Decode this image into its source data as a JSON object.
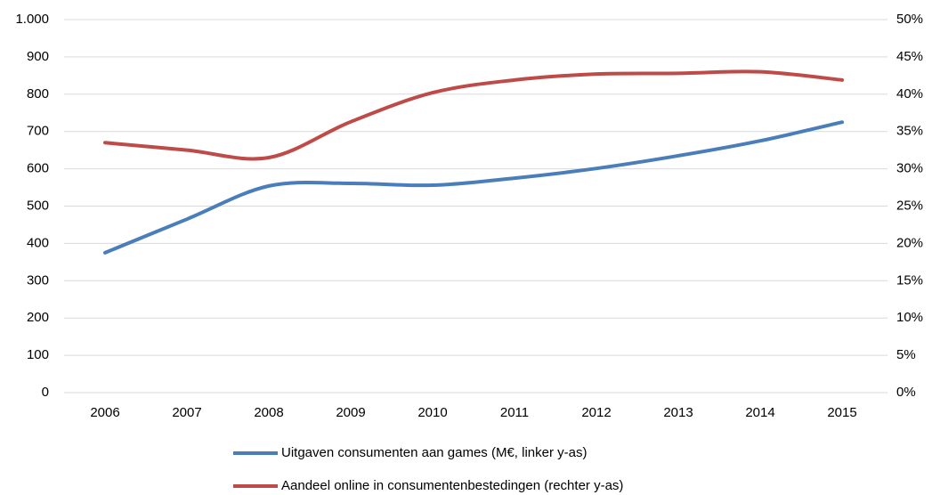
{
  "chart_data": {
    "type": "line",
    "categories": [
      "2006",
      "2007",
      "2008",
      "2009",
      "2010",
      "2011",
      "2012",
      "2013",
      "2014",
      "2015"
    ],
    "series": [
      {
        "name": "Uitgaven consumenten aan games (M€, linker y-as)",
        "color": "#4a7ebb",
        "values": [
          375,
          465,
          554,
          561,
          556,
          575,
          601,
          635,
          675,
          725
        ]
      },
      {
        "name": "Aandeel online in consumentenbestedingen (rechter y-as)",
        "color": "#be4b48",
        "axis": "y2",
        "values": [
          33.5,
          32.5,
          31.5,
          36.3,
          40.2,
          41.9,
          42.7,
          42.8,
          43,
          41.9
        ]
      }
    ],
    "ylim": [
      0,
      1000
    ],
    "yticks": [
      0,
      100,
      200,
      300,
      400,
      500,
      600,
      700,
      800,
      900,
      {
        "value": 1000,
        "label": "1.000"
      }
    ],
    "y2lim": [
      0,
      50
    ],
    "y2ticks": [
      {
        "value": 0,
        "label": "0%"
      },
      {
        "value": 5,
        "label": "5%"
      },
      {
        "value": 10,
        "label": "10%"
      },
      {
        "value": 15,
        "label": "15%"
      },
      {
        "value": 20,
        "label": "20%"
      },
      {
        "value": 25,
        "label": "25%"
      },
      {
        "value": 30,
        "label": "30%"
      },
      {
        "value": 35,
        "label": "35%"
      },
      {
        "value": 40,
        "label": "40%"
      },
      {
        "value": 45,
        "label": "45%"
      },
      {
        "value": 50,
        "label": "50%"
      }
    ],
    "grid": true,
    "legend": "bottom",
    "smooth": true
  }
}
